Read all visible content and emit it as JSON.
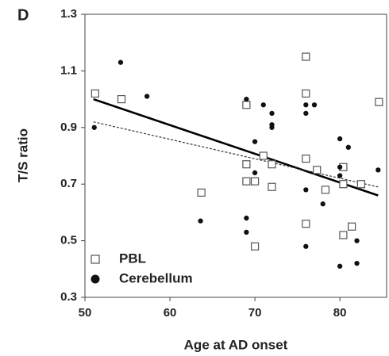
{
  "chart_data": {
    "type": "scatter",
    "panel_label": "D",
    "x_label": "Age at AD onset",
    "y_label": "T/S ratio",
    "xlim": [
      50,
      85.5
    ],
    "ylim": [
      0.3,
      1.3
    ],
    "xticks": [
      50,
      60,
      70,
      80
    ],
    "yticks": [
      0.3,
      0.5,
      0.7,
      0.9,
      1.1,
      1.3
    ],
    "legend": "lower left",
    "series": [
      {
        "name": "PBL",
        "color": "#555555",
        "marker": "square-open",
        "x": [
          51.2,
          54.3,
          63.7,
          69,
          69,
          69,
          70,
          70,
          71,
          72,
          72,
          76,
          76,
          76,
          76,
          77.3,
          78.3,
          80.4,
          80.4,
          80.4,
          81.4,
          82.5,
          84.6
        ],
        "values": [
          1.02,
          1.0,
          0.67,
          0.98,
          0.77,
          0.71,
          0.71,
          0.48,
          0.8,
          0.77,
          0.69,
          1.15,
          1.02,
          0.79,
          0.56,
          0.75,
          0.68,
          0.76,
          0.7,
          0.52,
          0.55,
          0.7,
          0.99
        ]
      },
      {
        "name": "Cerebellum",
        "color": "#111111",
        "marker": "circle-filled",
        "x": [
          51.1,
          54.2,
          57.3,
          63.6,
          69,
          69,
          69,
          70,
          70,
          71,
          72,
          72,
          72,
          76,
          76,
          76,
          76,
          77,
          78,
          80,
          80,
          80,
          80,
          81,
          82,
          82,
          84.5
        ],
        "values": [
          0.9,
          1.13,
          1.01,
          0.57,
          1.0,
          0.58,
          0.53,
          0.85,
          0.74,
          0.98,
          0.95,
          0.91,
          0.9,
          0.98,
          0.95,
          0.68,
          0.48,
          0.98,
          0.63,
          0.86,
          0.76,
          0.73,
          0.41,
          0.83,
          0.5,
          0.42,
          0.75
        ]
      }
    ],
    "trend_lines": [
      {
        "style": "solid",
        "color": "#000000",
        "x": [
          51,
          84.5
        ],
        "values": [
          1.0,
          0.66
        ]
      },
      {
        "style": "dashed",
        "color": "#333333",
        "x": [
          51,
          84.5
        ],
        "values": [
          0.92,
          0.69
        ]
      }
    ]
  }
}
